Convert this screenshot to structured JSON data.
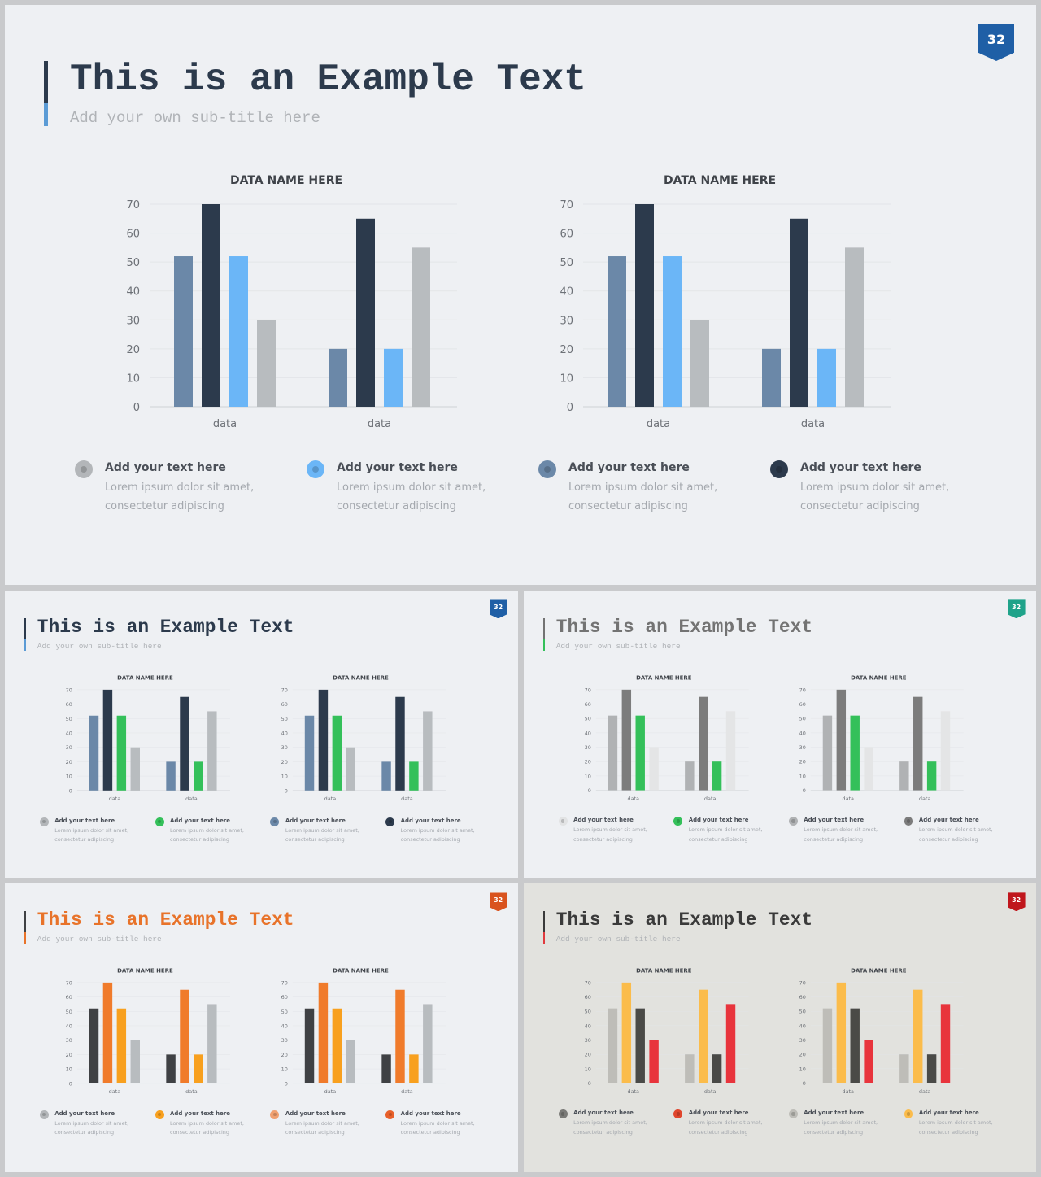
{
  "slides": [
    {
      "title": "This is an Example Text",
      "subtitle": "Add your own sub-title here",
      "page_number": "32",
      "colors": {
        "background": "#eef0f3",
        "title": "#2c3a4c",
        "bar_top": "#2c3a4c",
        "bar_bottom": "#5b9bd5",
        "badge": "#1f5fa6"
      },
      "charts": [
        {
          "chart_data": {
            "type": "bar",
            "title": "DATA NAME HERE",
            "categories": [
              "data",
              "data"
            ],
            "series": [
              {
                "values": [
                  52,
                  20
                ],
                "color": "#6b88a8"
              },
              {
                "values": [
                  70,
                  65
                ],
                "color": "#2c3a4c"
              },
              {
                "values": [
                  52,
                  20
                ],
                "color": "#6bb6f7"
              },
              {
                "values": [
                  30,
                  55
                ],
                "color": "#b8bcbf"
              }
            ],
            "ylim": [
              0,
              70
            ],
            "yticks": [
              0,
              10,
              20,
              30,
              40,
              50,
              60,
              70
            ],
            "grid": true
          }
        },
        {
          "chart_data": {
            "type": "bar",
            "title": "DATA NAME HERE",
            "categories": [
              "data",
              "data"
            ],
            "series": [
              {
                "values": [
                  52,
                  20
                ],
                "color": "#6b88a8"
              },
              {
                "values": [
                  70,
                  65
                ],
                "color": "#2c3a4c"
              },
              {
                "values": [
                  52,
                  20
                ],
                "color": "#6bb6f7"
              },
              {
                "values": [
                  30,
                  55
                ],
                "color": "#b8bcbf"
              }
            ],
            "ylim": [
              0,
              70
            ],
            "yticks": [
              0,
              10,
              20,
              30,
              40,
              50,
              60,
              70
            ],
            "grid": true
          }
        }
      ],
      "legend": [
        {
          "heading": "Add your text here",
          "body": [
            "Lorem ipsum dolor sit amet,",
            "consectetur adipiscing"
          ],
          "color": "#b3b6b9"
        },
        {
          "heading": "Add your text here",
          "body": [
            "Lorem ipsum dolor sit amet,",
            "consectetur adipiscing"
          ],
          "color": "#6bb6f7"
        },
        {
          "heading": "Add your text here",
          "body": [
            "Lorem ipsum dolor sit amet,",
            "consectetur adipiscing"
          ],
          "color": "#6b88a8"
        },
        {
          "heading": "Add your text here",
          "body": [
            "Lorem ipsum dolor sit amet,",
            "consectetur adipiscing"
          ],
          "color": "#2c3a4c"
        }
      ]
    },
    {
      "title": "This is an Example Text",
      "subtitle": "Add your own sub-title here",
      "page_number": "32",
      "colors": {
        "background": "#eef0f3",
        "title": "#2c3a4c",
        "bar_top": "#2c3a4c",
        "bar_bottom": "#5b9bd5",
        "badge": "#1f5fa6"
      },
      "charts": [
        {
          "chart_data": {
            "type": "bar",
            "title": "DATA NAME HERE",
            "categories": [
              "data",
              "data"
            ],
            "series": [
              {
                "values": [
                  52,
                  20
                ],
                "color": "#6b88a8"
              },
              {
                "values": [
                  70,
                  65
                ],
                "color": "#2c3a4c"
              },
              {
                "values": [
                  52,
                  20
                ],
                "color": "#34c05a"
              },
              {
                "values": [
                  30,
                  55
                ],
                "color": "#b8bcbf"
              }
            ],
            "ylim": [
              0,
              70
            ],
            "yticks": [
              0,
              10,
              20,
              30,
              40,
              50,
              60,
              70
            ],
            "grid": true
          }
        },
        {
          "chart_data": {
            "type": "bar",
            "title": "DATA NAME HERE",
            "categories": [
              "data",
              "data"
            ],
            "series": [
              {
                "values": [
                  52,
                  20
                ],
                "color": "#6b88a8"
              },
              {
                "values": [
                  70,
                  65
                ],
                "color": "#2c3a4c"
              },
              {
                "values": [
                  52,
                  20
                ],
                "color": "#34c05a"
              },
              {
                "values": [
                  30,
                  55
                ],
                "color": "#b8bcbf"
              }
            ],
            "ylim": [
              0,
              70
            ],
            "yticks": [
              0,
              10,
              20,
              30,
              40,
              50,
              60,
              70
            ],
            "grid": true
          }
        }
      ],
      "legend": [
        {
          "heading": "Add your text here",
          "body": [
            "Lorem ipsum dolor sit amet,",
            "consectetur adipiscing"
          ],
          "color": "#b3b6b9"
        },
        {
          "heading": "Add your text here",
          "body": [
            "Lorem ipsum dolor sit amet,",
            "consectetur adipiscing"
          ],
          "color": "#34c05a"
        },
        {
          "heading": "Add your text here",
          "body": [
            "Lorem ipsum dolor sit amet,",
            "consectetur adipiscing"
          ],
          "color": "#6b88a8"
        },
        {
          "heading": "Add your text here",
          "body": [
            "Lorem ipsum dolor sit amet,",
            "consectetur adipiscing"
          ],
          "color": "#2c3a4c"
        }
      ]
    },
    {
      "title": "This is an Example Text",
      "subtitle": "Add your own sub-title here",
      "page_number": "32",
      "colors": {
        "background": "#eef0f3",
        "title": "#737373",
        "bar_top": "#737373",
        "bar_bottom": "#34c05a",
        "badge": "#1fa38a"
      },
      "charts": [
        {
          "chart_data": {
            "type": "bar",
            "title": "DATA NAME HERE",
            "categories": [
              "data",
              "data"
            ],
            "series": [
              {
                "values": [
                  52,
                  20
                ],
                "color": "#b0b2b4"
              },
              {
                "values": [
                  70,
                  65
                ],
                "color": "#7c7c7c"
              },
              {
                "values": [
                  52,
                  20
                ],
                "color": "#34c05a"
              },
              {
                "values": [
                  30,
                  55
                ],
                "color": "#e4e5e6"
              }
            ],
            "ylim": [
              0,
              70
            ],
            "yticks": [
              0,
              10,
              20,
              30,
              40,
              50,
              60,
              70
            ],
            "grid": true
          }
        },
        {
          "chart_data": {
            "type": "bar",
            "title": "DATA NAME HERE",
            "categories": [
              "data",
              "data"
            ],
            "series": [
              {
                "values": [
                  52,
                  20
                ],
                "color": "#b0b2b4"
              },
              {
                "values": [
                  70,
                  65
                ],
                "color": "#7c7c7c"
              },
              {
                "values": [
                  52,
                  20
                ],
                "color": "#34c05a"
              },
              {
                "values": [
                  30,
                  55
                ],
                "color": "#e4e5e6"
              }
            ],
            "ylim": [
              0,
              70
            ],
            "yticks": [
              0,
              10,
              20,
              30,
              40,
              50,
              60,
              70
            ],
            "grid": true
          }
        }
      ],
      "legend": [
        {
          "heading": "Add your text here",
          "body": [
            "Lorem ipsum dolor sit amet,",
            "consectetur adipiscing"
          ],
          "color": "#e2e3e4"
        },
        {
          "heading": "Add your text here",
          "body": [
            "Lorem ipsum dolor sit amet,",
            "consectetur adipiscing"
          ],
          "color": "#34c05a"
        },
        {
          "heading": "Add your text here",
          "body": [
            "Lorem ipsum dolor sit amet,",
            "consectetur adipiscing"
          ],
          "color": "#b0b2b4"
        },
        {
          "heading": "Add your text here",
          "body": [
            "Lorem ipsum dolor sit amet,",
            "consectetur adipiscing"
          ],
          "color": "#7c7c7c"
        }
      ]
    },
    {
      "title": "This is an Example Text",
      "subtitle": "Add your own sub-title here",
      "page_number": "32",
      "colors": {
        "background": "#eef0f3",
        "title": "#e8732a",
        "bar_top": "#3f4144",
        "bar_bottom": "#e8732a",
        "badge": "#d9531e"
      },
      "charts": [
        {
          "chart_data": {
            "type": "bar",
            "title": "DATA NAME HERE",
            "categories": [
              "data",
              "data"
            ],
            "series": [
              {
                "values": [
                  52,
                  20
                ],
                "color": "#3f4144"
              },
              {
                "values": [
                  70,
                  65
                ],
                "color": "#f07b2b"
              },
              {
                "values": [
                  52,
                  20
                ],
                "color": "#f8a01e"
              },
              {
                "values": [
                  30,
                  55
                ],
                "color": "#b8bcbf"
              }
            ],
            "ylim": [
              0,
              70
            ],
            "yticks": [
              0,
              10,
              20,
              30,
              40,
              50,
              60,
              70
            ],
            "grid": true
          }
        },
        {
          "chart_data": {
            "type": "bar",
            "title": "DATA NAME HERE",
            "categories": [
              "data",
              "data"
            ],
            "series": [
              {
                "values": [
                  52,
                  20
                ],
                "color": "#3f4144"
              },
              {
                "values": [
                  70,
                  65
                ],
                "color": "#f07b2b"
              },
              {
                "values": [
                  52,
                  20
                ],
                "color": "#f8a01e"
              },
              {
                "values": [
                  30,
                  55
                ],
                "color": "#b8bcbf"
              }
            ],
            "ylim": [
              0,
              70
            ],
            "yticks": [
              0,
              10,
              20,
              30,
              40,
              50,
              60,
              70
            ],
            "grid": true
          }
        }
      ],
      "legend": [
        {
          "heading": "Add your text here",
          "body": [
            "Lorem ipsum dolor sit amet,",
            "consectetur adipiscing"
          ],
          "color": "#b3b6b9"
        },
        {
          "heading": "Add your text here",
          "body": [
            "Lorem ipsum dolor sit amet,",
            "consectetur adipiscing"
          ],
          "color": "#f8a01e"
        },
        {
          "heading": "Add your text here",
          "body": [
            "Lorem ipsum dolor sit amet,",
            "consectetur adipiscing"
          ],
          "color": "#f0a070"
        },
        {
          "heading": "Add your text here",
          "body": [
            "Lorem ipsum dolor sit amet,",
            "consectetur adipiscing"
          ],
          "color": "#e8602a"
        }
      ]
    },
    {
      "title": "This is an Example Text",
      "subtitle": "Add your own sub-title here",
      "page_number": "32",
      "colors": {
        "background": "#e2e2de",
        "title": "#3a3a3a",
        "bar_top": "#3a3a3a",
        "bar_bottom": "#e03a3e",
        "badge": "#c0161c"
      },
      "charts": [
        {
          "chart_data": {
            "type": "bar",
            "title": "DATA NAME HERE",
            "categories": [
              "data",
              "data"
            ],
            "series": [
              {
                "values": [
                  52,
                  20
                ],
                "color": "#bebdb8"
              },
              {
                "values": [
                  70,
                  65
                ],
                "color": "#fbbc4b"
              },
              {
                "values": [
                  52,
                  20
                ],
                "color": "#4a4a47"
              },
              {
                "values": [
                  30,
                  55
                ],
                "color": "#e8343c"
              }
            ],
            "ylim": [
              0,
              70
            ],
            "yticks": [
              0,
              10,
              20,
              30,
              40,
              50,
              60,
              70
            ],
            "grid": true
          }
        },
        {
          "chart_data": {
            "type": "bar",
            "title": "DATA NAME HERE",
            "categories": [
              "data",
              "data"
            ],
            "series": [
              {
                "values": [
                  52,
                  20
                ],
                "color": "#bebdb8"
              },
              {
                "values": [
                  70,
                  65
                ],
                "color": "#fbbc4b"
              },
              {
                "values": [
                  52,
                  20
                ],
                "color": "#4a4a47"
              },
              {
                "values": [
                  30,
                  55
                ],
                "color": "#e8343c"
              }
            ],
            "ylim": [
              0,
              70
            ],
            "yticks": [
              0,
              10,
              20,
              30,
              40,
              50,
              60,
              70
            ],
            "grid": true
          }
        }
      ],
      "legend": [
        {
          "heading": "Add your text here",
          "body": [
            "Lorem ipsum dolor sit amet,",
            "consectetur adipiscing"
          ],
          "color": "#7a7a77"
        },
        {
          "heading": "Add your text here",
          "body": [
            "Lorem ipsum dolor sit amet,",
            "consectetur adipiscing"
          ],
          "color": "#e0452c"
        },
        {
          "heading": "Add your text here",
          "body": [
            "Lorem ipsum dolor sit amet,",
            "consectetur adipiscing"
          ],
          "color": "#bebdb8"
        },
        {
          "heading": "Add your text here",
          "body": [
            "Lorem ipsum dolor sit amet,",
            "consectetur adipiscing"
          ],
          "color": "#fbbc4b"
        }
      ]
    }
  ]
}
